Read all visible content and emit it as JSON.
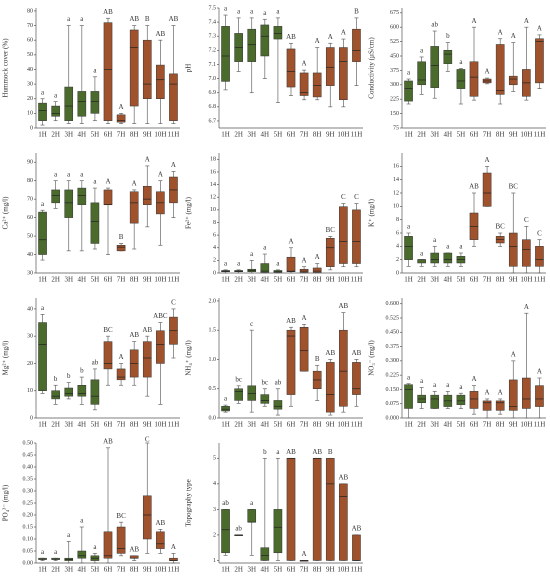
{
  "box_colors": [
    "#4a6b2c",
    "#4a6b2c",
    "#4a6b2c",
    "#4a6b2c",
    "#4a6b2c",
    "#a0522d",
    "#a0522d",
    "#a0522d",
    "#a0522d",
    "#a0522d",
    "#a0522d"
  ],
  "chart_data": [
    {
      "type": "box",
      "y_label": "Hummock cover (%)",
      "categories": [
        "1H",
        "2H",
        "3H",
        "4H",
        "5H",
        "6H",
        "7H",
        "8H",
        "9H",
        "10H",
        "11H"
      ],
      "ylim": [
        0,
        82
      ],
      "yticks": [
        0,
        10,
        20,
        30,
        40,
        50,
        60,
        70,
        80
      ],
      "boxes": [
        [
          2,
          5,
          12,
          17,
          20
        ],
        [
          5,
          8,
          10,
          15,
          18
        ],
        [
          3,
          5,
          15,
          28,
          70
        ],
        [
          3,
          8,
          18,
          25,
          70
        ],
        [
          5,
          10,
          18,
          25,
          35
        ],
        [
          3,
          5,
          40,
          72,
          75
        ],
        [
          3,
          4,
          5,
          9,
          10
        ],
        [
          3,
          15,
          55,
          67,
          70
        ],
        [
          3,
          20,
          30,
          60,
          70
        ],
        [
          3,
          20,
          33,
          43,
          60
        ],
        [
          3,
          5,
          30,
          37,
          70
        ]
      ],
      "letters": [
        "a",
        "a",
        "a",
        "a",
        "a",
        "AB",
        "A",
        "AB",
        "B",
        "AB",
        "AB"
      ]
    },
    {
      "type": "box",
      "y_label": "pH",
      "categories": [
        "1H",
        "2H",
        "3H",
        "4H",
        "5H",
        "6H",
        "7H",
        "8H",
        "9H",
        "10H",
        "11H"
      ],
      "ylim": [
        6.65,
        7.5
      ],
      "yticks": [
        6.7,
        6.8,
        6.9,
        {
          "value": 7,
          "label": "7.0"
        },
        7.1,
        7.2,
        7.3,
        7.4,
        7.5
      ],
      "boxes": [
        [
          6.92,
          6.98,
          7.16,
          7.37,
          7.45
        ],
        [
          7.05,
          7.12,
          7.22,
          7.32,
          7.43
        ],
        [
          6.9,
          7.12,
          7.24,
          7.35,
          7.43
        ],
        [
          7.0,
          7.16,
          7.3,
          7.38,
          7.42
        ],
        [
          6.83,
          7.28,
          7.32,
          7.37,
          7.43
        ],
        [
          6.88,
          6.94,
          7.05,
          7.21,
          7.25
        ],
        [
          6.85,
          6.88,
          6.9,
          7.04,
          7.06
        ],
        [
          6.85,
          6.87,
          6.95,
          7.04,
          7.22
        ],
        [
          6.8,
          6.95,
          7.08,
          7.22,
          7.25
        ],
        [
          6.8,
          6.85,
          7.12,
          7.22,
          7.28
        ],
        [
          6.95,
          7.12,
          7.2,
          7.35,
          7.43
        ]
      ],
      "letters": [
        "a",
        "a",
        "a",
        "a",
        "a",
        "AB",
        "A",
        "A",
        "A",
        "A",
        "B"
      ]
    },
    {
      "type": "box",
      "y_label": "Conductivity (µS/cm)",
      "categories": [
        "1H",
        "2H",
        "3H",
        "4H",
        "5H",
        "6H",
        "7H",
        "8H",
        "9H",
        "10H",
        "11H"
      ],
      "ylim": [
        75,
        700
      ],
      "yticks": [
        75,
        150,
        225,
        300,
        375,
        450,
        525,
        600,
        675
      ],
      "boxes": [
        [
          200,
          215,
          280,
          320,
          330
        ],
        [
          250,
          300,
          325,
          420,
          445
        ],
        [
          230,
          285,
          400,
          500,
          580
        ],
        [
          370,
          410,
          460,
          480,
          520
        ],
        [
          200,
          280,
          320,
          380,
          385
        ],
        [
          220,
          240,
          340,
          420,
          600
        ],
        [
          305,
          310,
          320,
          330,
          335
        ],
        [
          200,
          250,
          270,
          510,
          540
        ],
        [
          265,
          300,
          330,
          345,
          520
        ],
        [
          220,
          240,
          310,
          380,
          600
        ],
        [
          280,
          310,
          525,
          540,
          560
        ]
      ],
      "letters": [
        "a",
        "a",
        "ab",
        "b",
        "a",
        "A",
        "A",
        "A",
        "A",
        "A",
        "A"
      ]
    },
    {
      "type": "box",
      "y_label": "Ca²⁺ (mg/l)",
      "categories": [
        "1H",
        "2H",
        "3H",
        "4H",
        "5H",
        "6H",
        "7H",
        "8H",
        "9H",
        "10H",
        "11H"
      ],
      "ylim": [
        30,
        95
      ],
      "yticks": [
        30,
        40,
        50,
        60,
        70,
        80,
        90
      ],
      "boxes": [
        [
          37,
          40,
          48,
          63,
          64
        ],
        [
          65,
          68,
          72,
          75,
          80
        ],
        [
          42,
          60,
          68,
          75,
          80
        ],
        [
          42,
          67,
          72,
          76,
          80
        ],
        [
          43,
          46,
          58,
          68,
          76
        ],
        [
          40,
          67,
          67,
          75,
          76
        ],
        [
          42,
          42,
          44,
          45,
          46
        ],
        [
          43,
          57,
          68,
          74,
          75
        ],
        [
          55,
          67,
          70,
          77,
          88
        ],
        [
          45,
          62,
          68,
          74,
          80
        ],
        [
          60,
          68,
          75,
          82,
          85
        ]
      ],
      "letters": [
        "a",
        "a",
        "a",
        "a",
        "a",
        "A",
        "B",
        "A",
        "A",
        "A",
        "A"
      ]
    },
    {
      "type": "box",
      "y_label": "Fe²⁺ (mg/l)",
      "categories": [
        "1H",
        "2H",
        "3H",
        "4H",
        "5H",
        "6H",
        "7H",
        "8H",
        "9H",
        "10H",
        "11H"
      ],
      "ylim": [
        0,
        19
      ],
      "yticks": [
        0,
        2,
        4,
        6,
        8,
        10,
        12,
        14,
        16,
        18
      ],
      "boxes": [
        [
          0,
          0.2,
          0.3,
          0.4,
          0.5
        ],
        [
          0,
          0.2,
          0.3,
          0.4,
          0.5
        ],
        [
          0,
          0.2,
          0.4,
          0.6,
          2
        ],
        [
          0,
          0.1,
          0.3,
          1.5,
          3
        ],
        [
          0,
          0.1,
          0.2,
          0.4,
          0.5
        ],
        [
          0,
          0.2,
          0.3,
          2.5,
          4
        ],
        [
          0,
          0.1,
          0.3,
          0.6,
          1
        ],
        [
          0,
          0.1,
          0.3,
          0.8,
          1.5
        ],
        [
          0.5,
          1,
          4,
          5.5,
          5.8
        ],
        [
          1,
          1.5,
          5,
          10.5,
          11
        ],
        [
          1,
          1.5,
          5,
          10,
          11
        ]
      ],
      "letters": [
        "a",
        "a",
        "a",
        "a",
        "a",
        "A",
        "A",
        "A",
        "BC",
        "C",
        "C"
      ]
    },
    {
      "type": "box",
      "y_label": "K⁺ (mg/l)",
      "categories": [
        "1H",
        "2H",
        "3H",
        "4H",
        "5H",
        "6H",
        "7H",
        "8H",
        "9H",
        "10H",
        "11H"
      ],
      "ylim": [
        0,
        18
      ],
      "yticks": [
        0,
        2,
        4,
        6,
        8,
        10,
        12,
        14,
        16
      ],
      "boxes": [
        [
          1,
          2,
          4,
          5.5,
          6
        ],
        [
          1,
          1.5,
          2,
          2,
          2
        ],
        [
          1,
          1.5,
          2,
          3,
          4
        ],
        [
          1,
          1.5,
          2,
          3,
          3
        ],
        [
          1,
          1.5,
          2,
          2.5,
          3
        ],
        [
          4,
          5,
          7,
          9,
          12
        ],
        [
          10,
          10,
          12,
          15,
          16
        ],
        [
          4,
          4.5,
          5,
          5.5,
          6
        ],
        [
          0,
          1,
          4,
          6,
          12
        ],
        [
          0,
          1,
          3.5,
          5,
          7
        ],
        [
          0,
          1,
          2,
          4,
          5
        ]
      ],
      "letters": [
        "a",
        "a",
        "a",
        "a",
        "a",
        "AB",
        "A",
        "BC",
        "BC",
        "C",
        "C"
      ]
    },
    {
      "type": "box",
      "y_label": "Mg²⁺ (mg/l)",
      "categories": [
        "1H",
        "2H",
        "3H",
        "4H",
        "5H",
        "6H",
        "7H",
        "8H",
        "9H",
        "10H",
        "11H"
      ],
      "ylim": [
        0,
        44
      ],
      "yticks": [
        0,
        10,
        20,
        30,
        40
      ],
      "boxes": [
        [
          9,
          10,
          27,
          35,
          38
        ],
        [
          5,
          7,
          8,
          10,
          12
        ],
        [
          7,
          8,
          9,
          11,
          13
        ],
        [
          5,
          8,
          9,
          12,
          15
        ],
        [
          3,
          5,
          8,
          14,
          18
        ],
        [
          12,
          18,
          20,
          28,
          30
        ],
        [
          12,
          14,
          15,
          18,
          20
        ],
        [
          12,
          15,
          20,
          25,
          28
        ],
        [
          8,
          15,
          22,
          28,
          30
        ],
        [
          5,
          20,
          27,
          32,
          35
        ],
        [
          22,
          27,
          32,
          37,
          40
        ]
      ],
      "letters": [
        "a",
        "b",
        "b",
        "b",
        "ab",
        "BC",
        "A",
        "AB",
        "AB",
        "ABC",
        "C"
      ]
    },
    {
      "type": "box",
      "y_label": "NH₄⁺ (mg/l)",
      "categories": [
        "1H",
        "2H",
        "3H",
        "4H",
        "5H",
        "6H",
        "7H",
        "8H",
        "9H",
        "10H",
        "11H"
      ],
      "ylim": [
        0,
        2.05
      ],
      "yticks": [
        {
          "value": 0,
          "label": "0.0"
        },
        0.5,
        {
          "value": 1,
          "label": "1.0"
        },
        1.5,
        {
          "value": 2,
          "label": "2.0"
        }
      ],
      "boxes": [
        [
          0.1,
          0.12,
          0.15,
          0.2,
          0.22
        ],
        [
          0.25,
          0.3,
          0.45,
          0.5,
          0.55
        ],
        [
          0.1,
          0.3,
          0.42,
          0.55,
          1.5
        ],
        [
          0.2,
          0.25,
          0.3,
          0.4,
          0.5
        ],
        [
          0.05,
          0.15,
          0.2,
          0.3,
          0.5
        ],
        [
          0.2,
          0.4,
          1.4,
          1.5,
          1.55
        ],
        [
          0.8,
          0.8,
          1.15,
          1.55,
          1.6
        ],
        [
          0.3,
          0.5,
          0.65,
          0.8,
          0.9
        ],
        [
          0.05,
          0.1,
          0.4,
          0.95,
          1
        ],
        [
          0.1,
          0.2,
          0.8,
          1.5,
          1.8
        ],
        [
          0.2,
          0.4,
          0.5,
          0.95,
          1
        ]
      ],
      "letters": [
        "a",
        "bc",
        "c",
        "bc",
        "ab",
        "AB",
        "A",
        "B",
        "AB",
        "AB",
        "AB"
      ]
    },
    {
      "type": "box",
      "y_label": "NO₃⁻ (mg/l)",
      "categories": [
        "1H",
        "2H",
        "3H",
        "4H",
        "5H",
        "6H",
        "7H",
        "8H",
        "9H",
        "10H",
        "11H"
      ],
      "ylim": [
        0,
        0.63
      ],
      "yticks": [
        {
          "value": 0,
          "label": "0.000"
        },
        0.075,
        {
          "value": 0.15,
          "label": "0.150"
        },
        0.225,
        {
          "value": 0.3,
          "label": "0.300"
        },
        0.375,
        {
          "value": 0.45,
          "label": "0.450"
        },
        0.525,
        {
          "value": 0.6,
          "label": "0.600"
        }
      ],
      "boxes": [
        [
          0,
          0.05,
          0.15,
          0.175,
          0.18
        ],
        [
          0.05,
          0.08,
          0.1,
          0.12,
          0.16
        ],
        [
          0.05,
          0.05,
          0.1,
          0.12,
          0.14
        ],
        [
          0.05,
          0.06,
          0.09,
          0.12,
          0.14
        ],
        [
          0.05,
          0.07,
          0.09,
          0.12,
          0.13
        ],
        [
          0.02,
          0.05,
          0.1,
          0.14,
          0.17
        ],
        [
          0,
          0.04,
          0.08,
          0.09,
          0.1
        ],
        [
          0.02,
          0.04,
          0.08,
          0.09,
          0.1
        ],
        [
          0,
          0.04,
          0.06,
          0.2,
          0.3
        ],
        [
          0,
          0.05,
          0.1,
          0.21,
          0.55
        ],
        [
          0,
          0.06,
          0.1,
          0.17,
          0.21
        ]
      ],
      "letters": [
        "a",
        "a",
        "a",
        "a",
        "a",
        "A",
        "A",
        "A",
        "A",
        "A",
        "A"
      ]
    },
    {
      "type": "box",
      "y_label": "PO₄³⁻ (mg/l)",
      "categories": [
        "1H",
        "2H",
        "3H",
        "4H",
        "5H",
        "6H",
        "7H",
        "8H",
        "9H",
        "10H",
        "11H"
      ],
      "ylim": [
        0,
        0.5
      ],
      "yticks": [
        {
          "value": 0,
          "label": "0.00"
        },
        0.05,
        {
          "value": 0.1,
          "label": "0.10"
        },
        0.15,
        {
          "value": 0.2,
          "label": "0.20"
        },
        0.25,
        {
          "value": 0.3,
          "label": "0.30"
        },
        0.35,
        {
          "value": 0.4,
          "label": "0.40"
        },
        0.45,
        {
          "value": 0.5,
          "label": "0.50"
        }
      ],
      "boxes": [
        [
          0.01,
          0.015,
          0.015,
          0.02,
          0.02
        ],
        [
          0.01,
          0.015,
          0.015,
          0.02,
          0.02
        ],
        [
          0,
          0.01,
          0.015,
          0.02,
          0.09
        ],
        [
          0,
          0.02,
          0.03,
          0.05,
          0.15
        ],
        [
          0,
          0.01,
          0.02,
          0.03,
          0.04
        ],
        [
          0,
          0.02,
          0.03,
          0.13,
          0.48
        ],
        [
          0.03,
          0.04,
          0.06,
          0.15,
          0.17
        ],
        [
          0.01,
          0.02,
          0.02,
          0.03,
          0.03
        ],
        [
          0.04,
          0.1,
          0.2,
          0.28,
          0.5
        ],
        [
          0.04,
          0.06,
          0.08,
          0.13,
          0.14
        ],
        [
          0,
          0.01,
          0.01,
          0.02,
          0.04
        ]
      ],
      "letters": [
        "a",
        "a",
        "a",
        "a",
        "a",
        "AB",
        "BC",
        "AB",
        "C",
        "AB",
        "A"
      ]
    },
    {
      "type": "box",
      "y_label": "Topography type",
      "categories": [
        "1H",
        "2H",
        "3H",
        "4H",
        "5H",
        "6H",
        "7H",
        "8H",
        "9H",
        "10H",
        "11H"
      ],
      "ylim": [
        0.9,
        5.6
      ],
      "yticks": [
        1,
        2,
        3,
        4,
        5
      ],
      "boxes": [
        [
          1.2,
          1.3,
          2.2,
          3,
          3
        ],
        [
          2,
          2,
          2,
          2,
          2
        ],
        [
          1.2,
          2.5,
          2.5,
          3,
          3
        ],
        [
          1,
          1,
          1.2,
          1.5,
          5
        ],
        [
          1,
          1.3,
          2.3,
          3,
          5
        ],
        [
          1,
          1,
          5,
          5,
          5
        ],
        [
          1,
          1,
          1,
          1,
          1
        ],
        [
          1,
          1,
          5,
          5,
          5
        ],
        [
          1,
          1,
          4,
          5,
          5
        ],
        [
          1,
          1,
          3.5,
          4,
          4
        ],
        [
          1,
          1,
          1,
          2,
          2
        ]
      ],
      "letters": [
        "ab",
        "ab",
        "a",
        "b",
        "a",
        "AB",
        "A",
        "AB",
        "B",
        "AB",
        "AB"
      ]
    }
  ]
}
